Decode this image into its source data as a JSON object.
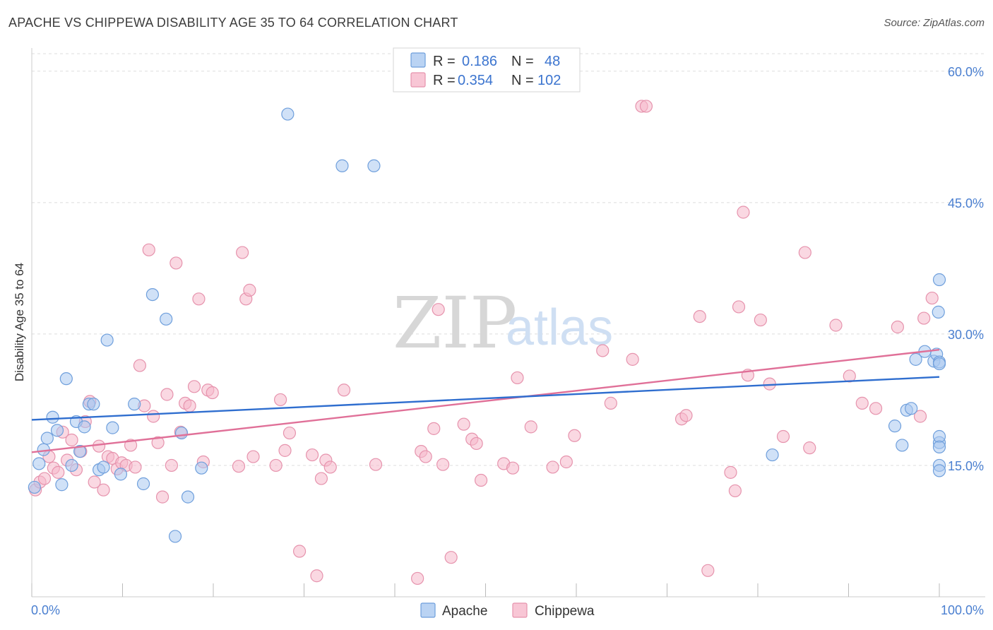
{
  "title": "APACHE VS CHIPPEWA DISABILITY AGE 35 TO 64 CORRELATION CHART",
  "source": "Source: ZipAtlas.com",
  "watermark": {
    "zip": "ZIP",
    "atlas": "atlas"
  },
  "legend": {
    "rows": [
      {
        "r_label": "R =",
        "r_value": "0.186",
        "n_label": "N =",
        "n_value": "48"
      },
      {
        "r_label": "R =",
        "r_value": "0.354",
        "n_label": "N =",
        "n_value": "102"
      }
    ]
  },
  "bottom_legend": [
    "Apache",
    "Chippewa"
  ],
  "colors": {
    "apache_fill": "#a9c8f0",
    "apache_stroke": "#6f9fdc",
    "apache_line": "#2f6ecf",
    "chippewa_fill": "#f6b8cb",
    "chippewa_stroke": "#e693ad",
    "chippewa_line": "#e07098",
    "tick_label": "#4a7fd0",
    "grid": "#dddddd"
  },
  "chart_data": {
    "type": "scatter",
    "title": "APACHE VS CHIPPEWA DISABILITY AGE 35 TO 64 CORRELATION CHART",
    "xlabel": "",
    "ylabel": "Disability Age 35 to 64",
    "x_tick_labels": [
      "0.0%",
      "100.0%"
    ],
    "y_tick_labels": [
      "15.0%",
      "30.0%",
      "45.0%",
      "60.0%"
    ],
    "y_ticks": [
      15,
      30,
      45,
      60
    ],
    "xlim": [
      0,
      100
    ],
    "ylim": [
      0,
      62
    ],
    "grid": true,
    "legend_position": "top-center",
    "series": [
      {
        "name": "Apache",
        "r": 0.186,
        "n": 48,
        "trend": {
          "x": [
            0,
            100
          ],
          "y": [
            20.2,
            25.1
          ]
        },
        "points": [
          [
            0.3,
            12.5
          ],
          [
            0.8,
            15.2
          ],
          [
            1.3,
            16.8
          ],
          [
            1.7,
            18.1
          ],
          [
            2.3,
            20.5
          ],
          [
            2.8,
            19.0
          ],
          [
            3.3,
            12.8
          ],
          [
            3.8,
            24.9
          ],
          [
            4.4,
            15.0
          ],
          [
            4.9,
            20.0
          ],
          [
            5.3,
            16.6
          ],
          [
            5.8,
            19.4
          ],
          [
            6.3,
            22.0
          ],
          [
            6.8,
            22.0
          ],
          [
            7.4,
            14.5
          ],
          [
            7.9,
            14.8
          ],
          [
            8.3,
            29.3
          ],
          [
            8.9,
            19.3
          ],
          [
            9.8,
            14.0
          ],
          [
            11.3,
            22.0
          ],
          [
            12.3,
            12.9
          ],
          [
            13.3,
            34.5
          ],
          [
            14.8,
            31.7
          ],
          [
            15.8,
            6.9
          ],
          [
            16.5,
            18.7
          ],
          [
            17.2,
            11.4
          ],
          [
            18.7,
            14.7
          ],
          [
            28.2,
            55.1
          ],
          [
            34.2,
            49.2
          ],
          [
            37.7,
            49.2
          ],
          [
            81.6,
            16.2
          ],
          [
            95.1,
            19.5
          ],
          [
            95.9,
            17.3
          ],
          [
            96.4,
            21.3
          ],
          [
            96.9,
            21.5
          ],
          [
            97.4,
            27.1
          ],
          [
            98.4,
            28.0
          ],
          [
            99.4,
            26.9
          ],
          [
            99.7,
            27.7
          ],
          [
            99.9,
            32.5
          ],
          [
            100.0,
            17.6
          ],
          [
            100.0,
            26.8
          ],
          [
            100.0,
            26.6
          ],
          [
            100.0,
            18.3
          ],
          [
            100.0,
            15.0
          ],
          [
            100.0,
            14.4
          ],
          [
            100.0,
            17.1
          ],
          [
            100.0,
            36.2
          ]
        ]
      },
      {
        "name": "Chippewa",
        "r": 0.354,
        "n": 102,
        "trend": {
          "x": [
            0,
            100
          ],
          "y": [
            16.5,
            28.2
          ]
        },
        "points": [
          [
            0.4,
            12.2
          ],
          [
            0.9,
            13.1
          ],
          [
            1.4,
            13.5
          ],
          [
            1.9,
            16.0
          ],
          [
            2.4,
            14.7
          ],
          [
            2.9,
            14.2
          ],
          [
            3.4,
            18.8
          ],
          [
            3.9,
            15.6
          ],
          [
            4.4,
            17.9
          ],
          [
            4.9,
            14.5
          ],
          [
            5.4,
            16.6
          ],
          [
            5.9,
            20.0
          ],
          [
            6.4,
            22.3
          ],
          [
            6.9,
            13.1
          ],
          [
            7.4,
            17.2
          ],
          [
            7.9,
            12.2
          ],
          [
            8.4,
            16.0
          ],
          [
            8.9,
            15.8
          ],
          [
            9.4,
            14.6
          ],
          [
            9.9,
            15.3
          ],
          [
            10.4,
            15.0
          ],
          [
            10.9,
            17.3
          ],
          [
            11.4,
            14.8
          ],
          [
            11.9,
            26.4
          ],
          [
            12.4,
            21.8
          ],
          [
            12.9,
            39.6
          ],
          [
            13.4,
            20.6
          ],
          [
            13.9,
            17.6
          ],
          [
            14.4,
            11.4
          ],
          [
            14.9,
            23.1
          ],
          [
            15.4,
            15.0
          ],
          [
            15.9,
            38.1
          ],
          [
            16.4,
            18.8
          ],
          [
            16.9,
            22.1
          ],
          [
            17.4,
            21.8
          ],
          [
            17.9,
            24.0
          ],
          [
            18.4,
            34.0
          ],
          [
            18.9,
            15.4
          ],
          [
            19.4,
            23.6
          ],
          [
            19.9,
            23.3
          ],
          [
            22.8,
            14.9
          ],
          [
            23.2,
            39.3
          ],
          [
            23.6,
            34.0
          ],
          [
            24.0,
            35.0
          ],
          [
            24.4,
            16.0
          ],
          [
            26.9,
            15.0
          ],
          [
            27.4,
            22.5
          ],
          [
            27.9,
            16.7
          ],
          [
            28.4,
            18.7
          ],
          [
            29.5,
            5.2
          ],
          [
            30.9,
            16.2
          ],
          [
            31.4,
            2.4
          ],
          [
            31.9,
            13.5
          ],
          [
            32.4,
            15.6
          ],
          [
            32.9,
            14.8
          ],
          [
            34.4,
            23.6
          ],
          [
            37.9,
            15.1
          ],
          [
            42.5,
            2.1
          ],
          [
            42.9,
            16.6
          ],
          [
            43.4,
            16.0
          ],
          [
            44.3,
            19.2
          ],
          [
            44.8,
            32.8
          ],
          [
            45.3,
            15.1
          ],
          [
            46.2,
            4.5
          ],
          [
            47.6,
            19.7
          ],
          [
            48.5,
            18.0
          ],
          [
            49.0,
            17.5
          ],
          [
            49.5,
            13.3
          ],
          [
            52.0,
            15.2
          ],
          [
            53.0,
            14.7
          ],
          [
            53.5,
            25.0
          ],
          [
            55.0,
            19.4
          ],
          [
            57.4,
            14.8
          ],
          [
            58.9,
            15.4
          ],
          [
            59.8,
            18.4
          ],
          [
            62.9,
            28.1
          ],
          [
            63.8,
            22.1
          ],
          [
            66.2,
            27.1
          ],
          [
            67.2,
            56.0
          ],
          [
            67.7,
            56.0
          ],
          [
            71.6,
            20.3
          ],
          [
            72.1,
            20.7
          ],
          [
            73.6,
            32.0
          ],
          [
            74.5,
            3.0
          ],
          [
            77.0,
            14.2
          ],
          [
            77.5,
            12.1
          ],
          [
            77.9,
            33.1
          ],
          [
            78.4,
            43.9
          ],
          [
            78.9,
            25.3
          ],
          [
            80.3,
            31.6
          ],
          [
            81.3,
            24.3
          ],
          [
            82.8,
            18.3
          ],
          [
            85.2,
            39.3
          ],
          [
            85.7,
            17.0
          ],
          [
            88.6,
            31.0
          ],
          [
            90.1,
            25.2
          ],
          [
            91.5,
            22.1
          ],
          [
            93.0,
            21.5
          ],
          [
            95.4,
            30.8
          ],
          [
            97.9,
            20.6
          ],
          [
            98.3,
            31.8
          ],
          [
            99.2,
            34.1
          ]
        ]
      }
    ]
  }
}
